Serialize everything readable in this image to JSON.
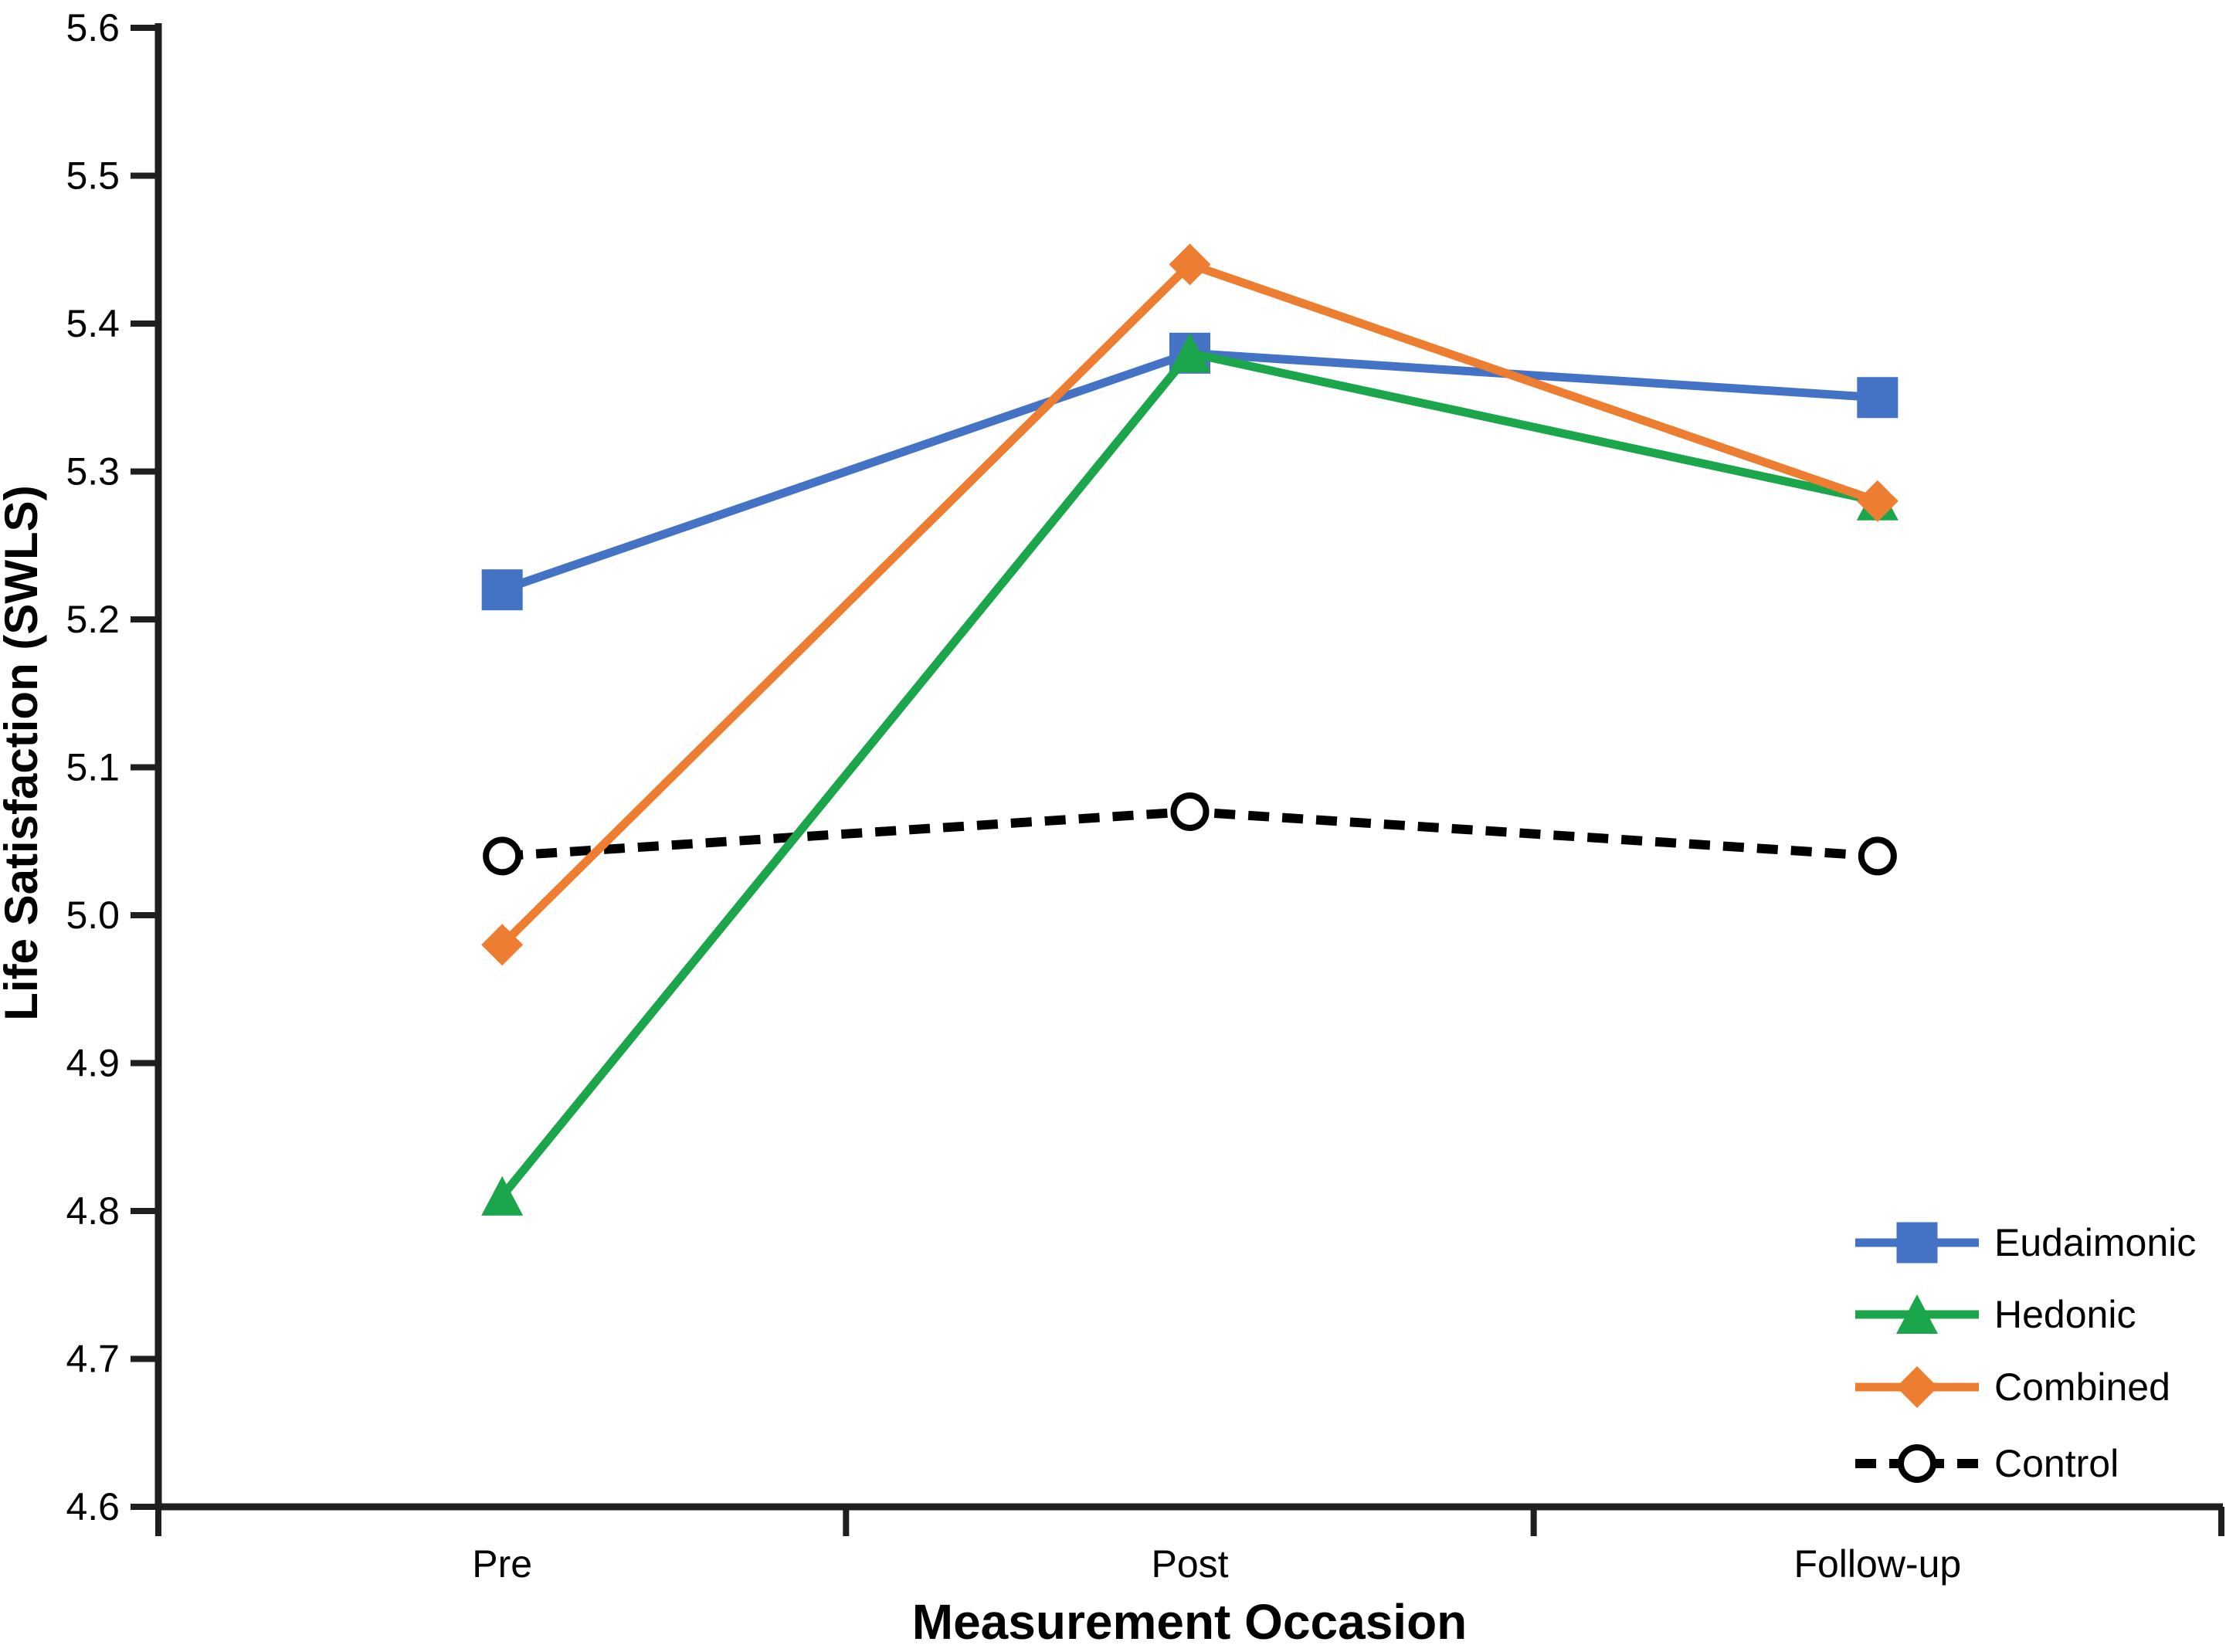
{
  "chart_data": {
    "type": "line",
    "title": "",
    "xlabel": "Measurement Occasion",
    "ylabel": "Life Satisfaction (SWLS)",
    "categories": [
      "Pre",
      "Post",
      "Follow-up"
    ],
    "ylim": [
      4.6,
      5.6
    ],
    "ytick_labels": [
      "4.6",
      "4.7",
      "4.8",
      "4.9",
      "5.0",
      "5.1",
      "5.2",
      "5.3",
      "5.4",
      "5.5",
      "5.6"
    ],
    "grid": false,
    "legend_position": "inside-bottom-right",
    "axis_color": "#1f1f1f",
    "text_color": "#000000",
    "background_color": "#ffffff",
    "series": [
      {
        "name": "Eudaimonic",
        "color": "#4472C4",
        "marker": "square",
        "line": "solid",
        "values": [
          5.22,
          5.38,
          5.35
        ]
      },
      {
        "name": "Hedonic",
        "color": "#1CA64C",
        "marker": "triangle",
        "line": "solid",
        "values": [
          4.81,
          5.38,
          5.28
        ]
      },
      {
        "name": "Combined",
        "color": "#ED7D31",
        "marker": "diamond",
        "line": "solid",
        "values": [
          4.98,
          5.44,
          5.28
        ]
      },
      {
        "name": "Control",
        "color": "#000000",
        "marker": "open-circle",
        "line": "dashed",
        "values": [
          5.04,
          5.07,
          5.04
        ]
      }
    ]
  }
}
